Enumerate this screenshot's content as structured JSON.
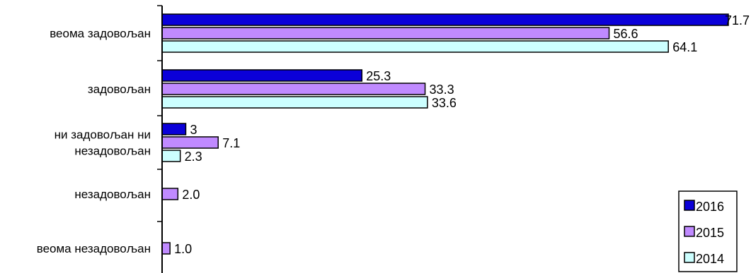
{
  "chart_data": {
    "type": "bar",
    "orientation": "horizontal",
    "categories": [
      [
        "веома задовољан"
      ],
      [
        "задовољан"
      ],
      [
        "ни задовољан ни",
        "незадовољан"
      ],
      [
        "незадовољан"
      ],
      [
        "веома незадовољан"
      ]
    ],
    "series": [
      {
        "name": "2016",
        "color": "#0b00d9",
        "values": [
          71.7,
          25.3,
          3,
          null,
          null
        ],
        "labels": [
          "71.7",
          "25.3",
          "3",
          "",
          ""
        ]
      },
      {
        "name": "2015",
        "color": "#c08aff",
        "values": [
          56.6,
          33.3,
          7.1,
          2.0,
          1.0
        ],
        "labels": [
          "56.6",
          "33.3",
          "7.1",
          "2.0",
          "1.0"
        ]
      },
      {
        "name": "2014",
        "color": "#ccffff",
        "values": [
          64.1,
          33.6,
          2.3,
          null,
          null
        ],
        "labels": [
          "64.1",
          "33.6",
          "2.3",
          "",
          ""
        ]
      }
    ],
    "xlim": [
      0,
      71.7
    ],
    "legend_position": "bottom-right",
    "grid": false
  }
}
